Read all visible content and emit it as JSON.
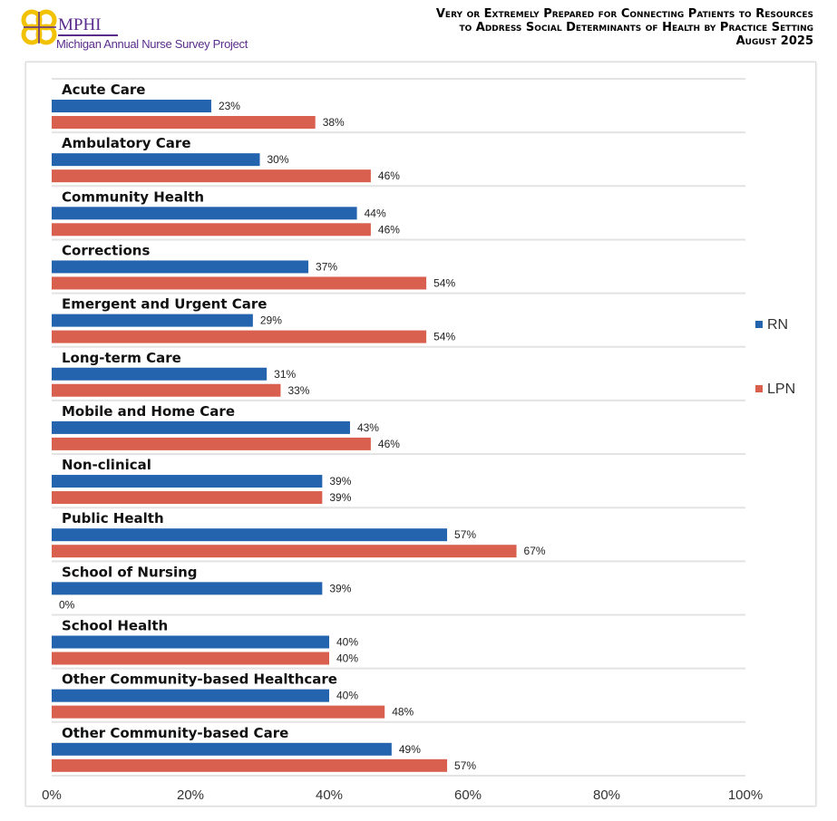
{
  "header": {
    "org": "MPHI",
    "subtitle": "Michigan Annual Nurse Survey Project",
    "title_lines": [
      "Very or Extremely Prepared for Connecting Patients to Resources",
      "to Address Social Determinants of Health by Practice Setting",
      "August 2025"
    ]
  },
  "colors": {
    "RN": "#2463ad",
    "LPN": "#d95f4e"
  },
  "chart_data": {
    "type": "bar",
    "orientation": "horizontal",
    "title": "Very or Extremely Prepared for Connecting Patients to Resources to Address Social Determinants of Health by Practice Setting, August 2025",
    "categories": [
      "Acute Care",
      "Ambulatory Care",
      "Community Health",
      "Corrections",
      "Emergent and Urgent Care",
      "Long-term Care",
      "Mobile and Home Care",
      "Non-clinical",
      "Public Health",
      "School of Nursing",
      "School Health",
      "Other Community-based Healthcare",
      "Other Community-based Care"
    ],
    "series": [
      {
        "name": "RN",
        "values": [
          23,
          30,
          44,
          37,
          29,
          31,
          43,
          39,
          57,
          39,
          40,
          40,
          49
        ]
      },
      {
        "name": "LPN",
        "values": [
          38,
          46,
          46,
          54,
          54,
          33,
          46,
          39,
          67,
          0,
          40,
          48,
          57
        ]
      }
    ],
    "xlim": [
      0,
      100
    ],
    "xticks": [
      "0%",
      "20%",
      "40%",
      "60%",
      "80%",
      "100%"
    ],
    "legend": "right",
    "grid": true
  }
}
